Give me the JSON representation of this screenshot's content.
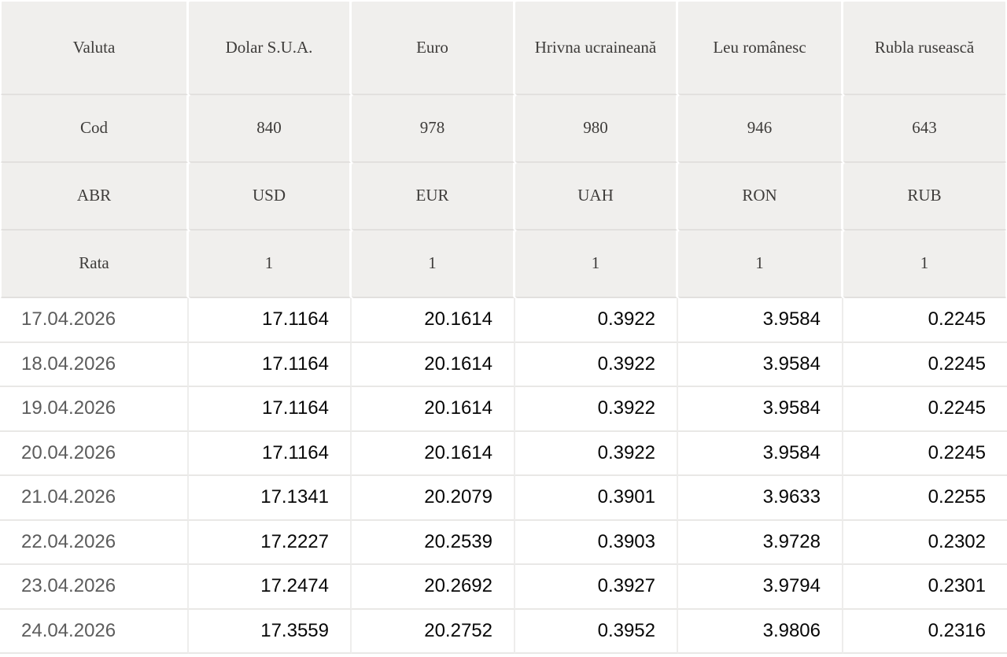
{
  "colors": {
    "header_bg": "#f0efed",
    "header_text": "#3e3c3a",
    "date_text": "#5c5c5c",
    "value_text": "#070707",
    "grid_line_gray_area": "#e2e0de",
    "grid_line_data_area": "#eeedec"
  },
  "table": {
    "columns": [
      "Valuta",
      "Dolar S.U.A.",
      "Euro",
      "Hrivna ucraineană",
      "Leu românesc",
      "Rubla rusească"
    ],
    "meta_rows": [
      {
        "label": "Cod",
        "values": [
          "840",
          "978",
          "980",
          "946",
          "643"
        ]
      },
      {
        "label": "ABR",
        "values": [
          "USD",
          "EUR",
          "UAH",
          "RON",
          "RUB"
        ]
      },
      {
        "label": "Rata",
        "values": [
          "1",
          "1",
          "1",
          "1",
          "1"
        ]
      }
    ],
    "rate_rows": [
      {
        "date": "17.04.2026",
        "values": [
          "17.1164",
          "20.1614",
          "0.3922",
          "3.9584",
          "0.2245"
        ]
      },
      {
        "date": "18.04.2026",
        "values": [
          "17.1164",
          "20.1614",
          "0.3922",
          "3.9584",
          "0.2245"
        ]
      },
      {
        "date": "19.04.2026",
        "values": [
          "17.1164",
          "20.1614",
          "0.3922",
          "3.9584",
          "0.2245"
        ]
      },
      {
        "date": "20.04.2026",
        "values": [
          "17.1164",
          "20.1614",
          "0.3922",
          "3.9584",
          "0.2245"
        ]
      },
      {
        "date": "21.04.2026",
        "values": [
          "17.1341",
          "20.2079",
          "0.3901",
          "3.9633",
          "0.2255"
        ]
      },
      {
        "date": "22.04.2026",
        "values": [
          "17.2227",
          "20.2539",
          "0.3903",
          "3.9728",
          "0.2302"
        ]
      },
      {
        "date": "23.04.2026",
        "values": [
          "17.2474",
          "20.2692",
          "0.3927",
          "3.9794",
          "0.2301"
        ]
      },
      {
        "date": "24.04.2026",
        "values": [
          "17.3559",
          "20.2752",
          "0.3952",
          "3.9806",
          "0.2316"
        ]
      }
    ]
  }
}
